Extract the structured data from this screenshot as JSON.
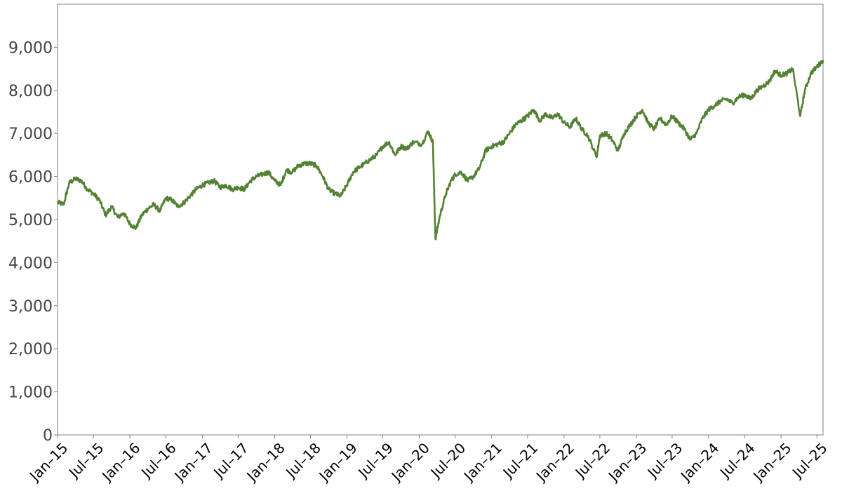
{
  "chart_data": {
    "type": "line",
    "title": "",
    "xlabel": "",
    "ylabel": "",
    "ylim": [
      0,
      10000
    ],
    "xlim": [
      "2015-01",
      "2025-08"
    ],
    "yticks": [
      0,
      1000,
      2000,
      3000,
      4000,
      5000,
      6000,
      7000,
      8000,
      9000
    ],
    "ytick_labels": [
      "0",
      "1,000",
      "2,000",
      "3,000",
      "4,000",
      "5,000",
      "6,000",
      "7,000",
      "8,000",
      "9,000"
    ],
    "xtick_labels": [
      "Jan-15",
      "Jul-15",
      "Jan-16",
      "Jul-16",
      "Jan-17",
      "Jul-17",
      "Jan-18",
      "Jul-18",
      "Jan-19",
      "Jul-19",
      "Jan-20",
      "Jul-20",
      "Jan-21",
      "Jul-21",
      "Jan-22",
      "Jul-22",
      "Jan-23",
      "Jul-23",
      "Jan-24",
      "Jul-24",
      "Jan-25",
      "Jul-25"
    ],
    "grid": false,
    "legend": false,
    "line_color": "#548235",
    "series": [
      {
        "x": [
          "2015-01-01",
          "2015-02-01",
          "2015-03-01",
          "2015-04-01",
          "2015-05-01",
          "2015-06-01",
          "2015-07-01",
          "2015-08-01",
          "2015-09-01",
          "2015-10-01",
          "2015-11-01",
          "2015-12-01",
          "2016-01-01",
          "2016-02-01",
          "2016-03-01",
          "2016-04-01",
          "2016-05-01",
          "2016-06-01",
          "2016-07-01",
          "2016-08-01",
          "2016-09-01",
          "2016-10-01",
          "2016-11-01",
          "2016-12-01",
          "2017-01-01",
          "2017-02-01",
          "2017-03-01",
          "2017-04-01",
          "2017-05-01",
          "2017-06-01",
          "2017-07-01",
          "2017-08-01",
          "2017-09-01",
          "2017-10-01",
          "2017-11-01",
          "2017-12-01",
          "2018-01-01",
          "2018-02-01",
          "2018-03-01",
          "2018-04-01",
          "2018-05-01",
          "2018-06-01",
          "2018-07-01",
          "2018-08-01",
          "2018-09-01",
          "2018-10-01",
          "2018-11-01",
          "2018-12-01",
          "2019-01-01",
          "2019-02-01",
          "2019-03-01",
          "2019-04-01",
          "2019-05-01",
          "2019-06-01",
          "2019-07-01",
          "2019-08-01",
          "2019-09-01",
          "2019-10-01",
          "2019-11-01",
          "2019-12-01",
          "2020-01-15",
          "2020-02-15",
          "2020-03-10",
          "2020-03-23",
          "2020-04-15",
          "2020-05-15",
          "2020-06-10",
          "2020-07-01",
          "2020-08-01",
          "2020-09-01",
          "2020-10-01",
          "2020-11-01",
          "2020-12-01",
          "2021-01-01",
          "2021-02-01",
          "2021-03-01",
          "2021-04-01",
          "2021-05-01",
          "2021-06-01",
          "2021-07-01",
          "2021-08-01",
          "2021-09-01",
          "2021-10-01",
          "2021-11-01",
          "2021-12-01",
          "2022-01-01",
          "2022-02-01",
          "2022-03-01",
          "2022-04-01",
          "2022-05-01",
          "2022-06-15",
          "2022-07-01",
          "2022-08-01",
          "2022-09-01",
          "2022-10-01",
          "2022-11-01",
          "2022-12-01",
          "2023-01-01",
          "2023-02-01",
          "2023-03-01",
          "2023-04-01",
          "2023-05-01",
          "2023-06-01",
          "2023-07-01",
          "2023-08-01",
          "2023-09-01",
          "2023-10-01",
          "2023-11-01",
          "2023-12-01",
          "2024-01-01",
          "2024-02-01",
          "2024-03-01",
          "2024-04-01",
          "2024-05-01",
          "2024-06-01",
          "2024-07-01",
          "2024-08-01",
          "2024-09-01",
          "2024-10-01",
          "2024-11-01",
          "2024-12-01",
          "2025-01-01",
          "2025-02-01",
          "2025-03-01",
          "2025-04-08",
          "2025-05-01",
          "2025-06-01",
          "2025-07-01",
          "2025-08-01"
        ],
        "y": [
          5400,
          5350,
          5850,
          5950,
          5900,
          5700,
          5600,
          5450,
          5100,
          5300,
          5050,
          5150,
          4900,
          4800,
          5100,
          5250,
          5350,
          5200,
          5500,
          5450,
          5300,
          5400,
          5550,
          5700,
          5800,
          5850,
          5900,
          5750,
          5800,
          5700,
          5750,
          5700,
          5900,
          6000,
          6050,
          6100,
          5900,
          5800,
          6150,
          6100,
          6250,
          6300,
          6300,
          6250,
          6000,
          5700,
          5600,
          5550,
          5800,
          6100,
          6200,
          6300,
          6400,
          6500,
          6700,
          6800,
          6500,
          6700,
          6650,
          6800,
          6750,
          7050,
          6800,
          4550,
          5100,
          5600,
          5900,
          6050,
          6100,
          5900,
          6000,
          6200,
          6600,
          6700,
          6750,
          6800,
          7000,
          7200,
          7300,
          7400,
          7550,
          7300,
          7450,
          7350,
          7450,
          7250,
          7150,
          7350,
          7100,
          6950,
          6450,
          6950,
          7000,
          6850,
          6600,
          7000,
          7200,
          7400,
          7550,
          7250,
          7100,
          7350,
          7200,
          7400,
          7250,
          7100,
          6850,
          7000,
          7350,
          7550,
          7650,
          7750,
          7800,
          7700,
          7850,
          7900,
          7800,
          8000,
          8100,
          8200,
          8450,
          8350,
          8400,
          8500,
          7400,
          8000,
          8400,
          8550,
          8700
        ]
      }
    ]
  }
}
